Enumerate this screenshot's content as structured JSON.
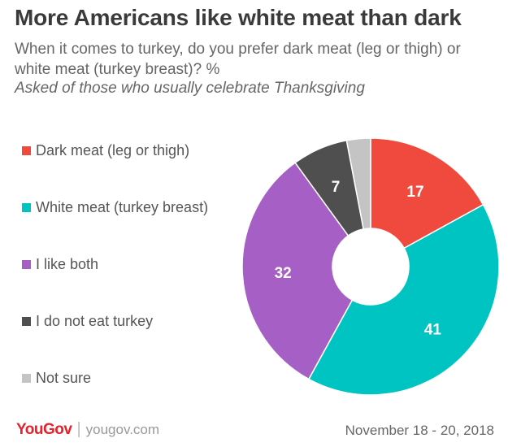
{
  "header": {
    "title": "More Americans like white meat than dark",
    "subtitle": "When it comes to turkey, do you prefer dark meat (leg or thigh) or white meat (turkey breast)? %",
    "note": "Asked of those who usually celebrate Thanksgiving"
  },
  "footer": {
    "brand": "YouGov",
    "separator": "|",
    "url": "yougov.com",
    "date": "November 18 - 20, 2018"
  },
  "chart_data": {
    "type": "pie",
    "donut": true,
    "categories": [
      "Dark meat (leg or thigh)",
      "White meat (turkey breast)",
      "I like both",
      "I do not eat turkey",
      "Not sure"
    ],
    "values": [
      17,
      41,
      32,
      7,
      3
    ],
    "data_labels": [
      "17",
      "41",
      "32",
      "7",
      ""
    ],
    "colors": [
      "#f04a3e",
      "#00c4c1",
      "#a65fc4",
      "#4f4f4f",
      "#c4c4c4"
    ],
    "start_angle_deg": 0,
    "direction": "clockwise",
    "legend_position": "left"
  }
}
